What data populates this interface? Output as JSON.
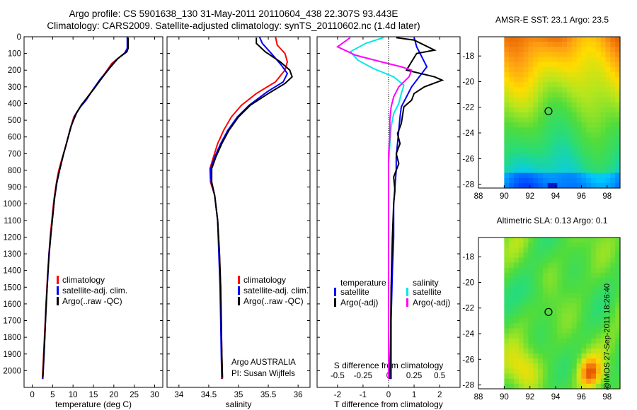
{
  "header": {
    "line1": "Argo profile: CS 5901638_130 31-May-2011 20110604_438 22.307S 93.443E",
    "line2": "Climatology: CARS2009. Satellite-adjusted climatology: synTS_20110602.nc (1.4d later)"
  },
  "colors": {
    "climatology": "#ff0000",
    "satellite": "#0000ff",
    "argo": "#000000",
    "sal_satellite": "#00e8e8",
    "sal_argo": "#ff00ff"
  },
  "legend": {
    "climatology": "climatology",
    "satellite": "satellite-adj. clim.",
    "argo": "Argo(..raw -QC)"
  },
  "diff_legend": {
    "t_head": "temperature",
    "s_head": "salinity",
    "satellite": "satellite",
    "argo": "Argo(-adj)"
  },
  "credit_owner": "Argo AUSTRALIA",
  "credit_pi": "PI: Susan Wijffels",
  "stamp": "@IMOS 27-Sep-2011 18:26:40",
  "maps": {
    "sst_title": "AMSR-E SST: 23.1 Argo: 23.5",
    "sla_title": "Altimetric SLA: 0.13 Argo: 0.1",
    "x_ticks": [
      "88",
      "90",
      "92",
      "94",
      "96",
      "98"
    ],
    "y_ticks": [
      "-18",
      "-20",
      "-22",
      "-24",
      "-26",
      "-28"
    ],
    "float_lon": 93.443,
    "float_lat": -22.307
  },
  "chart_data": [
    {
      "type": "line",
      "xlabel": "temperature (deg C)",
      "ylabel": "",
      "xlim": [
        -2,
        32
      ],
      "ylim": [
        2100,
        0
      ],
      "y_reversed": true,
      "x_ticks": [
        0,
        5,
        10,
        15,
        20,
        25,
        30
      ],
      "y_ticks": [
        0,
        100,
        200,
        300,
        400,
        500,
        600,
        700,
        800,
        900,
        1000,
        1100,
        1200,
        1300,
        1400,
        1500,
        1600,
        1700,
        1800,
        1900,
        2000
      ],
      "series": [
        {
          "name": "climatology",
          "color": "#ff0000",
          "points": [
            [
              23.4,
              0
            ],
            [
              23.4,
              60
            ],
            [
              23.0,
              90
            ],
            [
              21.5,
              120
            ],
            [
              19.5,
              160
            ],
            [
              17.8,
              220
            ],
            [
              16.0,
              280
            ],
            [
              14.5,
              330
            ],
            [
              13.0,
              380
            ],
            [
              11.5,
              430
            ],
            [
              10.2,
              480
            ],
            [
              9.2,
              560
            ],
            [
              8.3,
              650
            ],
            [
              7.3,
              730
            ],
            [
              6.5,
              800
            ],
            [
              5.9,
              880
            ],
            [
              5.3,
              980
            ],
            [
              4.8,
              1100
            ],
            [
              4.4,
              1200
            ],
            [
              4.1,
              1300
            ],
            [
              3.7,
              1450
            ],
            [
              3.4,
              1600
            ],
            [
              3.0,
              1800
            ],
            [
              2.7,
              1950
            ],
            [
              2.5,
              2050
            ]
          ]
        },
        {
          "name": "satellite-adj. clim.",
          "color": "#0000ff",
          "points": [
            [
              23.3,
              0
            ],
            [
              23.3,
              70
            ],
            [
              22.6,
              100
            ],
            [
              20.5,
              140
            ],
            [
              18.5,
              200
            ],
            [
              16.5,
              260
            ],
            [
              14.8,
              320
            ],
            [
              13.2,
              380
            ],
            [
              11.8,
              420
            ],
            [
              10.5,
              470
            ],
            [
              9.5,
              540
            ],
            [
              8.6,
              620
            ],
            [
              7.6,
              710
            ],
            [
              6.8,
              790
            ],
            [
              6.0,
              880
            ],
            [
              5.4,
              980
            ],
            [
              4.9,
              1100
            ],
            [
              4.5,
              1200
            ],
            [
              4.1,
              1300
            ],
            [
              3.8,
              1450
            ],
            [
              3.4,
              1600
            ],
            [
              3.1,
              1800
            ],
            [
              2.8,
              1950
            ],
            [
              2.6,
              2050
            ]
          ]
        },
        {
          "name": "Argo(..raw -QC)",
          "color": "#000000",
          "points": [
            [
              23.5,
              5
            ],
            [
              23.5,
              70
            ],
            [
              23.2,
              90
            ],
            [
              21.0,
              130
            ],
            [
              18.9,
              190
            ],
            [
              17.0,
              250
            ],
            [
              15.2,
              310
            ],
            [
              13.6,
              360
            ],
            [
              12.0,
              410
            ],
            [
              10.8,
              460
            ],
            [
              9.6,
              530
            ],
            [
              8.7,
              610
            ],
            [
              7.7,
              700
            ],
            [
              6.9,
              780
            ],
            [
              6.1,
              860
            ],
            [
              5.5,
              960
            ],
            [
              5.0,
              1080
            ],
            [
              4.6,
              1180
            ],
            [
              4.2,
              1290
            ],
            [
              3.8,
              1430
            ],
            [
              3.5,
              1580
            ],
            [
              3.1,
              1780
            ],
            [
              2.8,
              1940
            ],
            [
              2.6,
              2040
            ]
          ]
        }
      ]
    },
    {
      "type": "line",
      "xlabel": "salinity",
      "ylabel": "",
      "xlim": [
        33.8,
        36.2
      ],
      "ylim": [
        2100,
        0
      ],
      "y_reversed": true,
      "x_ticks": [
        34,
        34.5,
        35,
        35.5,
        36
      ],
      "series": [
        {
          "name": "climatology",
          "color": "#ff0000",
          "points": [
            [
              35.62,
              0
            ],
            [
              35.65,
              50
            ],
            [
              35.78,
              100
            ],
            [
              35.82,
              150
            ],
            [
              35.78,
              200
            ],
            [
              35.62,
              270
            ],
            [
              35.3,
              340
            ],
            [
              35.05,
              410
            ],
            [
              34.88,
              480
            ],
            [
              34.75,
              560
            ],
            [
              34.65,
              640
            ],
            [
              34.58,
              720
            ],
            [
              34.52,
              790
            ],
            [
              34.53,
              870
            ],
            [
              34.6,
              950
            ],
            [
              34.65,
              1100
            ],
            [
              34.68,
              1300
            ],
            [
              34.7,
              1500
            ],
            [
              34.71,
              1700
            ],
            [
              34.72,
              1900
            ],
            [
              34.73,
              2050
            ]
          ]
        },
        {
          "name": "satellite-adj. clim.",
          "color": "#0000ff",
          "points": [
            [
              35.35,
              0
            ],
            [
              35.4,
              40
            ],
            [
              35.55,
              100
            ],
            [
              35.72,
              170
            ],
            [
              35.82,
              220
            ],
            [
              35.75,
              270
            ],
            [
              35.48,
              330
            ],
            [
              35.18,
              410
            ],
            [
              34.98,
              480
            ],
            [
              34.82,
              560
            ],
            [
              34.7,
              640
            ],
            [
              34.6,
              720
            ],
            [
              34.53,
              790
            ],
            [
              34.54,
              870
            ],
            [
              34.6,
              950
            ],
            [
              34.65,
              1100
            ],
            [
              34.67,
              1300
            ],
            [
              34.69,
              1500
            ],
            [
              34.7,
              1700
            ],
            [
              34.71,
              1900
            ],
            [
              34.72,
              2050
            ]
          ]
        },
        {
          "name": "Argo(..raw -QC)",
          "color": "#000000",
          "points": [
            [
              35.3,
              5
            ],
            [
              35.3,
              40
            ],
            [
              35.45,
              90
            ],
            [
              35.7,
              150
            ],
            [
              35.86,
              200
            ],
            [
              35.9,
              240
            ],
            [
              35.78,
              280
            ],
            [
              35.5,
              340
            ],
            [
              35.2,
              410
            ],
            [
              35.0,
              480
            ],
            [
              34.84,
              560
            ],
            [
              34.72,
              640
            ],
            [
              34.62,
              720
            ],
            [
              34.55,
              790
            ],
            [
              34.55,
              870
            ],
            [
              34.6,
              950
            ],
            [
              34.65,
              1100
            ],
            [
              34.68,
              1300
            ],
            [
              34.7,
              1500
            ],
            [
              34.71,
              1700
            ],
            [
              34.72,
              1900
            ],
            [
              34.73,
              2040
            ]
          ]
        }
      ]
    },
    {
      "type": "line",
      "xlabel": "T difference from climatology",
      "ylabel": "",
      "xlim": [
        -2.8,
        2.8
      ],
      "ylim": [
        2100,
        0
      ],
      "y_reversed": true,
      "x_ticks": [
        -2,
        -1,
        0,
        1,
        2
      ],
      "top_axis_label": "S difference from climatology",
      "top_ticks": [
        "-0.5",
        "-0.25",
        "0",
        "0.25",
        "0.5"
      ],
      "top_tick_values": [
        -0.5,
        -0.25,
        0,
        0.25,
        0.5
      ],
      "top_scale": 4,
      "series": [
        {
          "name": "satellite (temperature)",
          "color": "#0000ff",
          "points": [
            [
              1.0,
              5
            ],
            [
              1.1,
              60
            ],
            [
              1.3,
              120
            ],
            [
              1.5,
              180
            ],
            [
              1.2,
              240
            ],
            [
              0.9,
              300
            ],
            [
              0.7,
              360
            ],
            [
              0.5,
              420
            ],
            [
              0.45,
              480
            ],
            [
              0.4,
              560
            ],
            [
              0.35,
              640
            ],
            [
              0.3,
              720
            ],
            [
              0.3,
              800
            ],
            [
              0.25,
              900
            ],
            [
              0.2,
              1000
            ],
            [
              0.2,
              1200
            ],
            [
              0.15,
              1400
            ],
            [
              0.1,
              1700
            ],
            [
              0.1,
              2050
            ]
          ]
        },
        {
          "name": "Argo(-adj) (temperature)",
          "color": "#000000",
          "points": [
            [
              0.3,
              5
            ],
            [
              1.0,
              20
            ],
            [
              1.4,
              50
            ],
            [
              1.8,
              80
            ],
            [
              1.1,
              100
            ],
            [
              0.9,
              150
            ],
            [
              0.7,
              200
            ],
            [
              1.8,
              240
            ],
            [
              2.1,
              260
            ],
            [
              1.4,
              300
            ],
            [
              1.0,
              340
            ],
            [
              0.9,
              380
            ],
            [
              0.6,
              420
            ],
            [
              0.55,
              470
            ],
            [
              0.5,
              520
            ],
            [
              0.35,
              580
            ],
            [
              0.45,
              640
            ],
            [
              0.3,
              700
            ],
            [
              0.4,
              760
            ],
            [
              0.2,
              840
            ],
            [
              0.25,
              920
            ],
            [
              0.2,
              1000
            ],
            [
              0.15,
              1200
            ],
            [
              0.1,
              1500
            ],
            [
              0.08,
              1800
            ],
            [
              0.05,
              2050
            ]
          ]
        },
        {
          "name": "satellite (salinity)",
          "color": "#00e8e8",
          "points": [
            [
              -0.2,
              5
            ],
            [
              -0.9,
              40
            ],
            [
              -1.5,
              90
            ],
            [
              -1.2,
              140
            ],
            [
              -0.6,
              190
            ],
            [
              0.2,
              240
            ],
            [
              0.6,
              290
            ],
            [
              0.5,
              340
            ],
            [
              0.4,
              400
            ],
            [
              0.2,
              460
            ],
            [
              0.1,
              540
            ],
            [
              0.05,
              640
            ],
            [
              0.0,
              760
            ],
            [
              0.0,
              900
            ],
            [
              0.0,
              1100
            ],
            [
              0.0,
              1400
            ],
            [
              0.0,
              1700
            ],
            [
              0.0,
              2050
            ]
          ]
        },
        {
          "name": "Argo(-adj) (salinity)",
          "color": "#ff00ff",
          "points": [
            [
              -1.5,
              5
            ],
            [
              -2.0,
              60
            ],
            [
              -1.3,
              110
            ],
            [
              -0.3,
              150
            ],
            [
              0.5,
              180
            ],
            [
              0.9,
              200
            ],
            [
              0.8,
              240
            ],
            [
              0.4,
              300
            ],
            [
              0.2,
              360
            ],
            [
              0.1,
              420
            ],
            [
              0.05,
              500
            ],
            [
              0.05,
              600
            ],
            [
              0.0,
              700
            ],
            [
              0.0,
              850
            ],
            [
              0.0,
              1000
            ],
            [
              0.0,
              1300
            ],
            [
              0.0,
              1600
            ],
            [
              0.0,
              2050
            ]
          ]
        }
      ]
    }
  ]
}
